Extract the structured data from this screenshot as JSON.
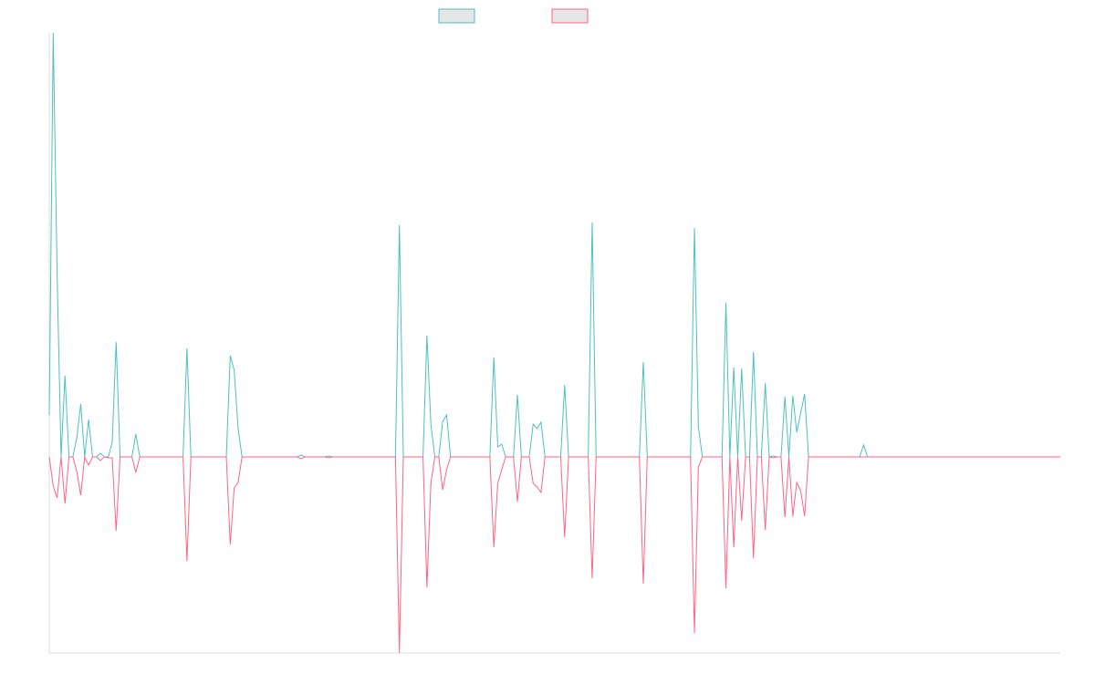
{
  "chart_data": {
    "type": "line",
    "ylim": [
      -215,
      465
    ],
    "legend": "top",
    "series": [
      {
        "color": "#4bc0c0",
        "values": [
          46,
          465,
          200,
          0,
          89,
          0,
          0,
          21,
          58,
          0,
          41,
          0,
          0,
          4,
          0,
          0,
          16,
          126,
          0,
          0,
          0,
          0,
          25,
          0,
          0,
          0,
          0,
          0,
          0,
          0,
          0,
          0,
          0,
          0,
          0,
          119,
          0,
          0,
          0,
          0,
          0,
          0,
          0,
          0,
          0,
          0,
          111,
          95,
          31,
          0,
          0,
          0,
          0,
          0,
          0,
          0,
          0,
          0,
          0,
          0,
          0,
          0,
          0,
          0,
          2,
          0,
          0,
          0,
          0,
          0,
          0,
          1,
          0,
          0,
          0,
          0,
          0,
          0,
          0,
          0,
          0,
          0,
          0,
          0,
          0,
          0,
          0,
          0,
          0,
          254,
          0,
          0,
          0,
          0,
          0,
          0,
          133,
          36,
          0,
          0,
          39,
          46,
          0,
          0,
          0,
          0,
          0,
          0,
          0,
          0,
          0,
          0,
          0,
          109,
          11,
          14,
          0,
          0,
          0,
          68,
          0,
          0,
          0,
          36,
          31,
          38,
          0,
          0,
          0,
          0,
          0,
          79,
          0,
          0,
          0,
          0,
          0,
          0,
          257,
          0,
          0,
          0,
          0,
          0,
          0,
          0,
          0,
          0,
          0,
          0,
          0,
          104,
          0,
          0,
          0,
          0,
          0,
          0,
          0,
          0,
          0,
          0,
          0,
          0,
          251,
          33,
          0,
          0,
          0,
          0,
          0,
          0,
          169,
          0,
          98,
          0,
          97,
          0,
          0,
          115,
          0,
          0,
          81,
          0,
          1,
          0,
          0,
          66,
          0,
          67,
          27,
          48,
          69,
          0,
          0,
          0,
          0,
          0,
          0,
          0,
          0,
          0,
          0,
          0,
          0,
          0,
          0,
          13,
          0,
          0,
          0,
          0,
          0,
          0,
          0,
          0,
          0,
          0,
          0,
          0,
          0,
          0,
          0,
          0,
          0,
          0,
          0,
          0,
          0,
          0,
          0,
          0,
          0,
          0,
          0,
          0,
          0,
          0,
          0,
          0,
          0,
          0,
          0,
          0,
          0,
          0,
          0,
          0,
          0,
          0,
          0,
          0,
          0,
          0,
          0,
          0,
          0,
          0
        ]
      },
      {
        "color": "#ff6384",
        "values": [
          0,
          -32,
          -45,
          0,
          -51,
          0,
          0,
          -16,
          -42,
          0,
          -9,
          0,
          0,
          -4,
          0,
          -1,
          -1,
          -81,
          0,
          0,
          0,
          0,
          -17,
          0,
          0,
          0,
          0,
          0,
          0,
          0,
          0,
          0,
          0,
          0,
          0,
          -114,
          0,
          0,
          0,
          0,
          0,
          0,
          0,
          0,
          0,
          0,
          -96,
          -34,
          -28,
          0,
          0,
          0,
          0,
          0,
          0,
          0,
          0,
          0,
          0,
          0,
          0,
          0,
          0,
          0,
          -2,
          0,
          0,
          0,
          0,
          0,
          0,
          -1,
          0,
          0,
          0,
          0,
          0,
          0,
          0,
          0,
          0,
          0,
          0,
          0,
          0,
          0,
          0,
          0,
          0,
          -215,
          0,
          0,
          0,
          0,
          0,
          0,
          -143,
          -29,
          0,
          0,
          -36,
          -14,
          0,
          0,
          0,
          0,
          0,
          0,
          0,
          0,
          0,
          0,
          0,
          -99,
          -29,
          -14,
          0,
          0,
          0,
          -49,
          0,
          0,
          0,
          -29,
          -33,
          -39,
          0,
          0,
          0,
          0,
          0,
          -88,
          0,
          0,
          0,
          0,
          0,
          0,
          -133,
          0,
          0,
          0,
          0,
          0,
          0,
          0,
          0,
          0,
          0,
          0,
          0,
          -139,
          0,
          0,
          0,
          0,
          0,
          0,
          0,
          0,
          0,
          0,
          0,
          0,
          -193,
          -11,
          0,
          0,
          0,
          0,
          0,
          0,
          -144,
          0,
          -99,
          0,
          -70,
          0,
          0,
          -111,
          0,
          0,
          -80,
          0,
          -1,
          0,
          0,
          -66,
          0,
          -65,
          -28,
          -37,
          -65,
          0,
          0,
          0,
          0,
          0,
          0,
          0,
          0,
          0,
          0,
          0,
          0,
          0,
          0,
          0,
          0,
          0,
          0,
          0,
          0,
          0,
          0,
          0,
          0,
          0,
          0,
          0,
          0,
          0,
          0,
          0,
          0,
          0,
          0,
          0,
          0,
          0,
          0,
          0,
          0,
          0,
          0,
          0,
          0,
          0,
          0,
          0,
          0,
          0,
          0,
          0,
          0,
          0,
          0,
          0,
          0,
          0,
          0,
          0,
          0,
          0,
          0,
          0,
          0,
          0
        ]
      }
    ]
  }
}
